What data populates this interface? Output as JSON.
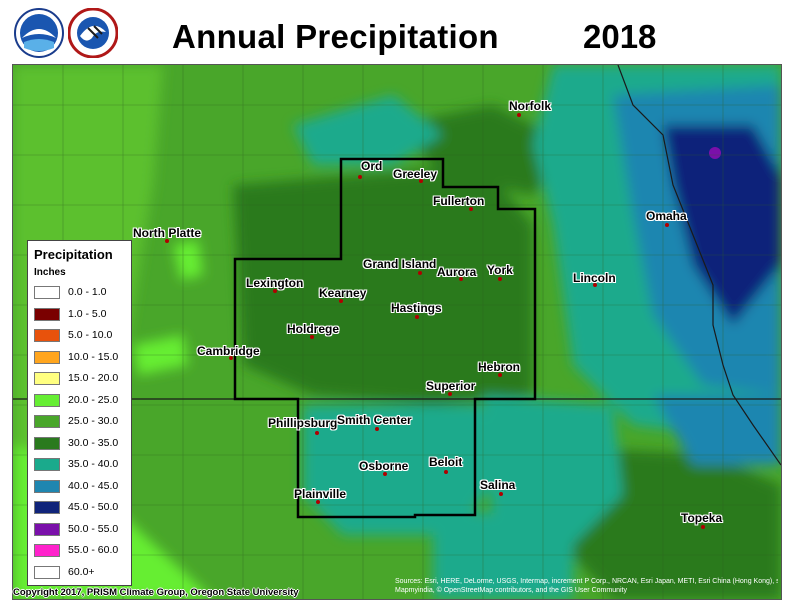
{
  "header": {
    "title": "Annual Precipitation",
    "year": "2018"
  },
  "legend": {
    "title": "Precipitation",
    "units": "Inches",
    "entries": [
      {
        "label": "0.0 - 1.0",
        "color": "#ffffff"
      },
      {
        "label": "1.0 - 5.0",
        "color": "#7a0000"
      },
      {
        "label": "5.0 - 10.0",
        "color": "#e8520c"
      },
      {
        "label": "10.0 - 15.0",
        "color": "#ffa51e"
      },
      {
        "label": "15.0 - 20.0",
        "color": "#ffff80"
      },
      {
        "label": "20.0 - 25.0",
        "color": "#66ee33"
      },
      {
        "label": "25.0 - 30.0",
        "color": "#49a62a"
      },
      {
        "label": "30.0 - 35.0",
        "color": "#2a7a1e"
      },
      {
        "label": "35.0 - 40.0",
        "color": "#1aaa8c"
      },
      {
        "label": "40.0 - 45.0",
        "color": "#1f86b0"
      },
      {
        "label": "45.0 - 50.0",
        "color": "#10247a"
      },
      {
        "label": "50.0 - 55.0",
        "color": "#7a10aa"
      },
      {
        "label": "55.0 - 60.0",
        "color": "#ff22cc"
      },
      {
        "label": "60.0+",
        "color": "#ffffff"
      }
    ]
  },
  "cities": [
    {
      "name": "Norfolk"
    },
    {
      "name": "Ord"
    },
    {
      "name": "Greeley"
    },
    {
      "name": "Fullerton"
    },
    {
      "name": "Omaha"
    },
    {
      "name": "North Platte"
    },
    {
      "name": "Grand Island"
    },
    {
      "name": "Aurora"
    },
    {
      "name": "York"
    },
    {
      "name": "Lincoln"
    },
    {
      "name": "Lexington"
    },
    {
      "name": "Kearney"
    },
    {
      "name": "Hastings"
    },
    {
      "name": "Holdrege"
    },
    {
      "name": "Cambridge"
    },
    {
      "name": "Hebron"
    },
    {
      "name": "Superior"
    },
    {
      "name": "Phillipsburg"
    },
    {
      "name": "Smith Center"
    },
    {
      "name": "Osborne"
    },
    {
      "name": "Beloit"
    },
    {
      "name": "Plainville"
    },
    {
      "name": "Topeka"
    },
    {
      "name": "Salina"
    }
  ],
  "footer": {
    "copyright": "Copyright 2017, PRISM Climate Group, Oregon State University",
    "sources_line1": "Sources: Esri, HERE, DeLorme, USGS, Intermap, increment P Corp., NRCAN, Esri Japan, METI, Esri China (Hong Kong), swisstopo,",
    "sources_line2": "Mapmyindia, © OpenStreetMap contributors, and the GIS User Community"
  }
}
